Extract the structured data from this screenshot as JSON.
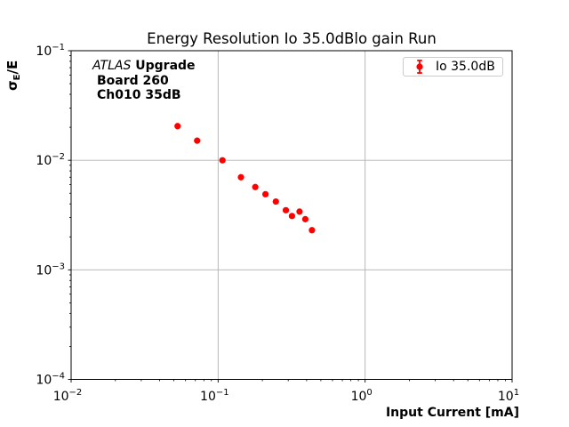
{
  "chart_data": {
    "type": "scatter",
    "title": "Energy Resolution Io 35.0dBlo gain Run",
    "xlabel": "Input Current [mA]",
    "ylabel": "σE/E",
    "ylabel_parts": {
      "base": "σ",
      "sub": "E",
      "rest": "/E"
    },
    "xscale": "log",
    "yscale": "log",
    "xlim": [
      0.01,
      10
    ],
    "ylim": [
      0.0001,
      0.1
    ],
    "grid": "major",
    "legend_position": "upper right",
    "x_tick_exponents": [
      -2,
      -1,
      0,
      1
    ],
    "y_tick_exponents": [
      -1,
      -2,
      -3,
      -4
    ],
    "series": [
      {
        "name": "Io 35.0dB",
        "marker": "circle-with-errorbar",
        "color": "#ff0000",
        "x": [
          0.053,
          0.072,
          0.107,
          0.143,
          0.179,
          0.21,
          0.247,
          0.289,
          0.318,
          0.358,
          0.392,
          0.435
        ],
        "y": [
          0.0205,
          0.0151,
          0.01,
          0.007,
          0.0057,
          0.0049,
          0.0042,
          0.0035,
          0.0031,
          0.0034,
          0.0029,
          0.0023
        ]
      }
    ],
    "annotation": {
      "brand": "ATLAS",
      "line1_rest": " Upgrade",
      "line2": "Board 260",
      "line3": "Ch010 35dB"
    }
  },
  "colors": {
    "marker": "#ff0000",
    "grid": "#b0b0b0",
    "axis": "#000000",
    "legend_border": "#cccccc",
    "background": "#ffffff"
  }
}
